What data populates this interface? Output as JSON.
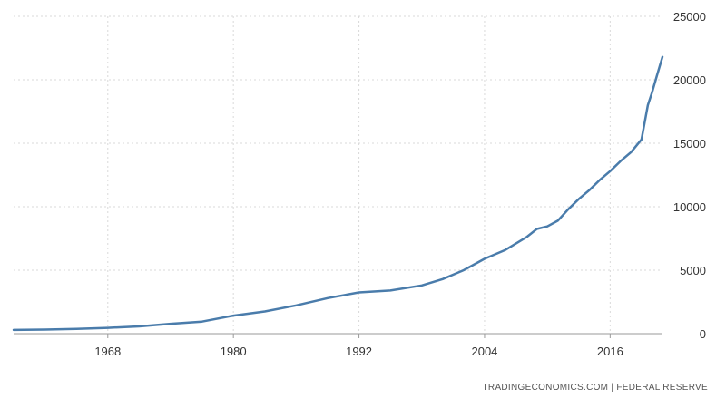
{
  "chart_data": {
    "type": "line",
    "title": "",
    "xlabel": "",
    "ylabel": "",
    "xlim": [
      1959,
      2021
    ],
    "ylim": [
      0,
      25000
    ],
    "x_ticks": [
      {
        "value": 1968,
        "label": "1968"
      },
      {
        "value": 1980,
        "label": "1980"
      },
      {
        "value": 1992,
        "label": "1992"
      },
      {
        "value": 2004,
        "label": "2004"
      },
      {
        "value": 2016,
        "label": "2016"
      }
    ],
    "y_ticks": [
      {
        "value": 0,
        "label": "0"
      },
      {
        "value": 5000,
        "label": "5000"
      },
      {
        "value": 10000,
        "label": "10000"
      },
      {
        "value": 15000,
        "label": "15000"
      },
      {
        "value": 20000,
        "label": "20000"
      },
      {
        "value": 25000,
        "label": "25000"
      }
    ],
    "grid": true,
    "y_axis_side": "right",
    "line_color": "#4a7cab",
    "series": [
      {
        "values": [
          [
            1959,
            290
          ],
          [
            1962,
            320
          ],
          [
            1965,
            380
          ],
          [
            1968,
            460
          ],
          [
            1971,
            570
          ],
          [
            1974,
            780
          ],
          [
            1977,
            950
          ],
          [
            1980,
            1420
          ],
          [
            1983,
            1750
          ],
          [
            1986,
            2230
          ],
          [
            1989,
            2800
          ],
          [
            1992,
            3250
          ],
          [
            1995,
            3400
          ],
          [
            1998,
            3800
          ],
          [
            2000,
            4300
          ],
          [
            2002,
            5000
          ],
          [
            2004,
            5900
          ],
          [
            2006,
            6600
          ],
          [
            2008,
            7600
          ],
          [
            2009,
            8250
          ],
          [
            2010,
            8450
          ],
          [
            2011,
            8900
          ],
          [
            2012,
            9800
          ],
          [
            2013,
            10600
          ],
          [
            2014,
            11300
          ],
          [
            2015,
            12100
          ],
          [
            2016,
            12800
          ],
          [
            2017,
            13600
          ],
          [
            2018,
            14300
          ],
          [
            2019,
            15300
          ],
          [
            2019.6,
            18000
          ],
          [
            2020,
            19000
          ],
          [
            2020.5,
            20400
          ],
          [
            2021,
            21800
          ]
        ]
      }
    ],
    "source": "TRADINGECONOMICS.COM  |  FEDERAL RESERVE"
  }
}
